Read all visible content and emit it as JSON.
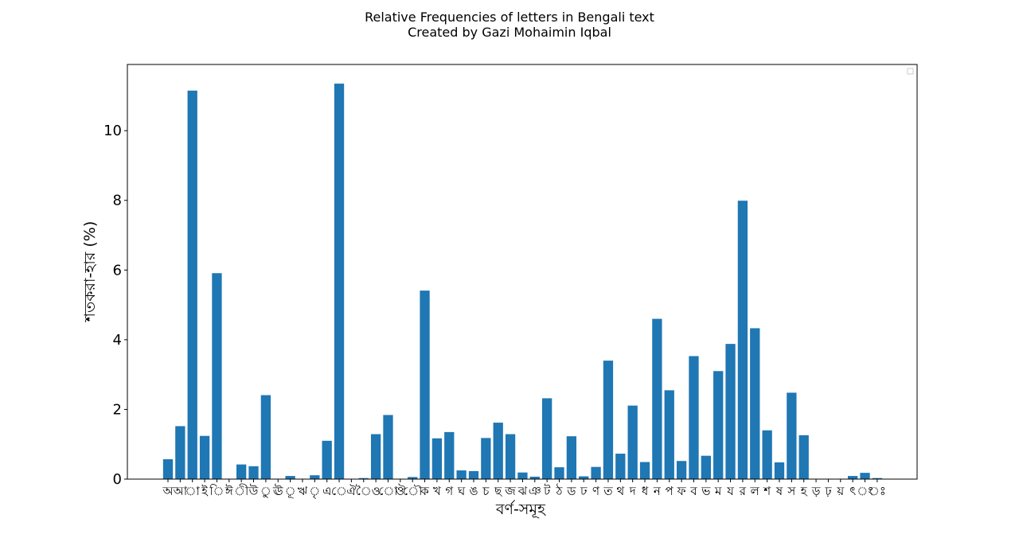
{
  "chart_data": {
    "type": "bar",
    "title": "Relative Frequencies of letters in Bengali text",
    "subtitle": "Created by Gazi Mohaimin Iqbal",
    "xlabel": "বর্ণ-সমূহ",
    "ylabel": "শতকরা-হার (%)",
    "ylim": [
      0,
      11.9
    ],
    "yticks": [
      0,
      2,
      4,
      6,
      8,
      10
    ],
    "legend": "top-right (empty)",
    "grid": false,
    "color": "#1f77b4",
    "categories": [
      "অ",
      "আ",
      "া",
      "ই",
      "ি",
      "ঈ",
      "ী",
      "উ",
      "ু",
      "ঊ",
      "ূ",
      "ঋ",
      "ৃ",
      "এ",
      "ে",
      "ঐ",
      "ৈ",
      "ও",
      "ো",
      "ঔ",
      "ৌ",
      "ক",
      "খ",
      "গ",
      "ঘ",
      "ঙ",
      "চ",
      "ছ",
      "জ",
      "ঝ",
      "ঞ",
      "ট",
      "ঠ",
      "ড",
      "ঢ",
      "ণ",
      "ত",
      "থ",
      "দ",
      "ধ",
      "ন",
      "প",
      "ফ",
      "ব",
      "ভ",
      "ম",
      "য",
      "র",
      "ল",
      "শ",
      "ষ",
      "স",
      "হ",
      "ড়",
      "ঢ়",
      "য়",
      "ৎ",
      "ং",
      "ঃ"
    ],
    "values": [
      0.57,
      1.52,
      11.15,
      1.24,
      5.91,
      0.01,
      0.42,
      0.37,
      2.41,
      0.01,
      0.09,
      0.01,
      0.11,
      1.1,
      11.35,
      0.0,
      0.03,
      1.29,
      1.84,
      0.0,
      0.06,
      5.41,
      1.17,
      1.35,
      0.25,
      0.23,
      1.18,
      1.62,
      1.29,
      0.19,
      0.07,
      2.32,
      0.34,
      1.23,
      0.08,
      0.35,
      3.4,
      0.73,
      2.11,
      0.49,
      4.6,
      2.55,
      0.52,
      3.53,
      0.67,
      3.1,
      3.88,
      7.99,
      4.33,
      1.4,
      0.48,
      2.48,
      1.26,
      0.0,
      0.0,
      0.0,
      0.09,
      0.18,
      0.03
    ]
  }
}
